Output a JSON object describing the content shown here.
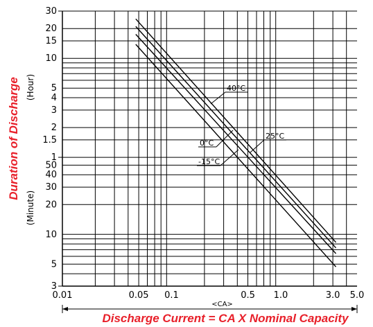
{
  "chart_data": {
    "type": "line",
    "ylabel": "Duration of Discharge",
    "ylabel_hour": "(Hour)",
    "ylabel_minute": "(Minute)",
    "xlabel": "Discharge Current = CA X Nominal Capacity",
    "x_unit_label": "<CA>",
    "x_scale": "log",
    "xlim": [
      0.01,
      5.0
    ],
    "x_ticks": [
      "0.01",
      "0.05",
      "0.1",
      "0.5",
      "1.0",
      "3.0",
      "5.0"
    ],
    "y_scale": "log",
    "hour_ticks": [
      "30",
      "20",
      "15",
      "10",
      "5",
      "4",
      "3",
      "2",
      "1.5",
      "1"
    ],
    "minute_ticks": [
      "50",
      "40",
      "30",
      "20",
      "10",
      "5",
      "3"
    ],
    "grid": true,
    "series": [
      {
        "name": "40°C",
        "x": [
          0.047,
          3.2
        ],
        "y_minutes": [
          1500,
          8.3
        ]
      },
      {
        "name": "25°C",
        "x": [
          0.047,
          3.2
        ],
        "y_minutes": [
          1260,
          7.3
        ]
      },
      {
        "name": "0°C",
        "x": [
          0.047,
          3.2
        ],
        "y_minutes": [
          1050,
          6.4
        ]
      },
      {
        "name": "-15°C",
        "x": [
          0.047,
          3.2
        ],
        "y_minutes": [
          830,
          4.7
        ]
      }
    ]
  }
}
